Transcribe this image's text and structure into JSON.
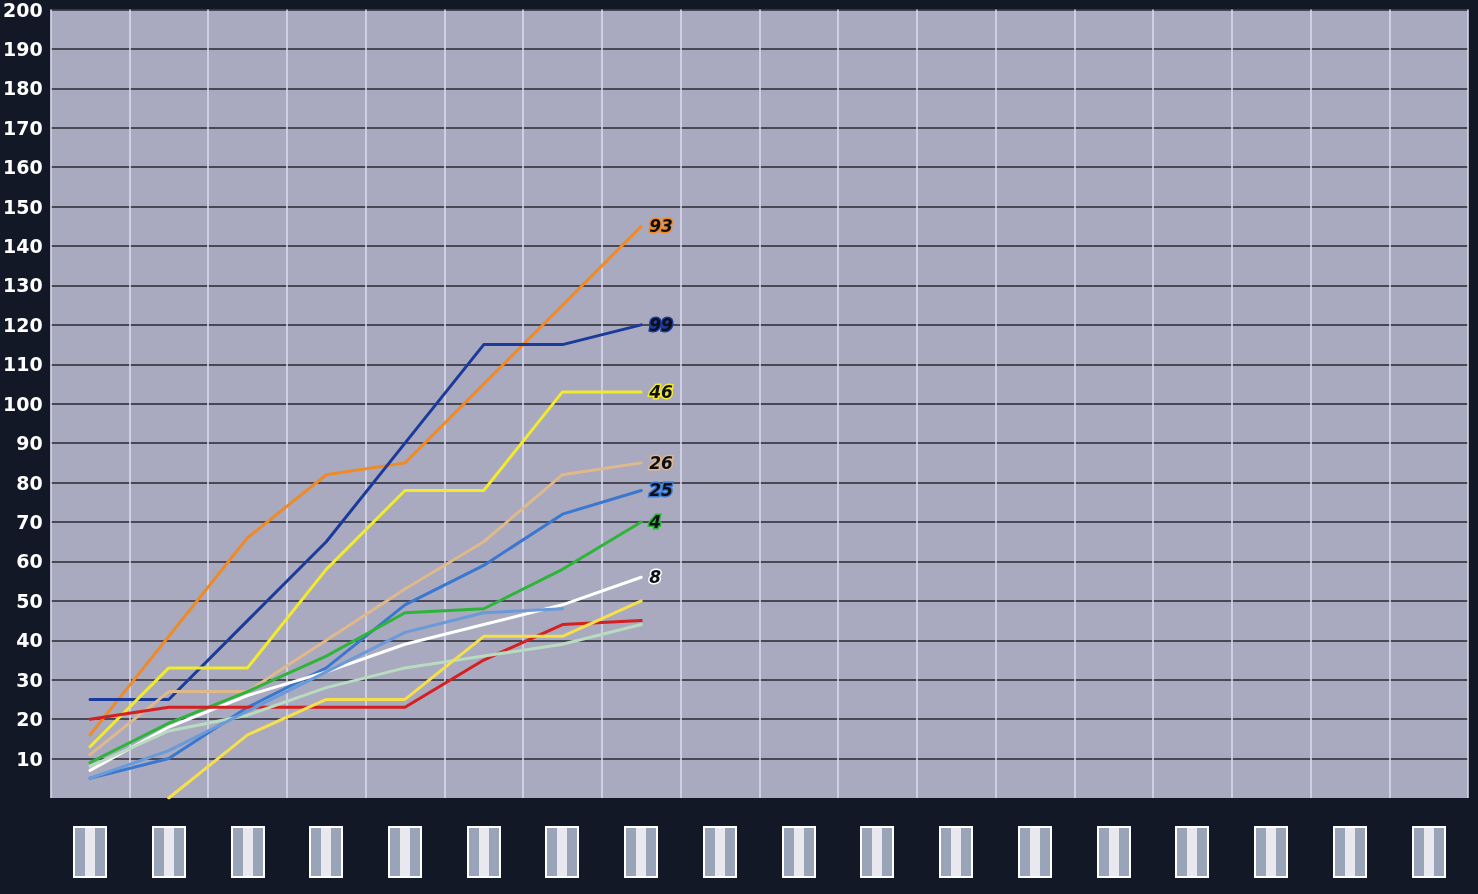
{
  "chart_data": {
    "type": "line",
    "categories": [
      null,
      null,
      null,
      null,
      null,
      null,
      null,
      null,
      null,
      null,
      null,
      null,
      null,
      null,
      null,
      null,
      null,
      null
    ],
    "ylim": [
      0,
      200
    ],
    "yticks": [
      10,
      20,
      30,
      40,
      50,
      60,
      70,
      80,
      90,
      100,
      110,
      120,
      130,
      140,
      150,
      160,
      170,
      180,
      190,
      200
    ],
    "grid": true,
    "legend": false,
    "marker": "none",
    "line_style": "solid",
    "series": [
      {
        "name": "93",
        "color": "#f08a24",
        "values": [
          16,
          41,
          66,
          82,
          85,
          105,
          125,
          145,
          null,
          null,
          null,
          null,
          null,
          null,
          null,
          null,
          null,
          null
        ]
      },
      {
        "name": "99",
        "color": "#1a3a9c",
        "values": [
          25,
          25,
          45,
          65,
          90,
          115,
          115,
          120,
          null,
          null,
          null,
          null,
          null,
          null,
          null,
          null,
          null,
          null
        ]
      },
      {
        "name": "46",
        "color": "#f2ea2a",
        "values": [
          13,
          33,
          33,
          58,
          78,
          78,
          103,
          103,
          null,
          null,
          null,
          null,
          null,
          null,
          null,
          null,
          null,
          null
        ]
      },
      {
        "name": "26",
        "color": "#e0b98a",
        "values": [
          11,
          27,
          27,
          40,
          53,
          65,
          82,
          85,
          null,
          null,
          null,
          null,
          null,
          null,
          null,
          null,
          null,
          null
        ]
      },
      {
        "name": "25",
        "color": "#3a78d0",
        "values": [
          5,
          10,
          23,
          33,
          49,
          59,
          72,
          78,
          null,
          null,
          null,
          null,
          null,
          null,
          null,
          null,
          null,
          null
        ]
      },
      {
        "name": "4",
        "color": "#2fb43a",
        "values": [
          9,
          19,
          27,
          36,
          47,
          48,
          58,
          70,
          null,
          null,
          null,
          null,
          null,
          null,
          null,
          null,
          null,
          null
        ]
      },
      {
        "name": "8",
        "color": "#ffffff",
        "values": [
          7,
          18,
          26,
          32,
          39,
          44,
          49,
          56,
          null,
          null,
          null,
          null,
          null,
          null,
          null,
          null,
          null,
          null
        ]
      },
      {
        "color": "#d42020",
        "values": [
          20,
          23,
          23,
          23,
          23,
          35,
          44,
          45,
          null,
          null,
          null,
          null,
          null,
          null,
          null,
          null,
          null,
          null
        ]
      },
      {
        "color": "#b8dcc0",
        "values": [
          8,
          17,
          21,
          28,
          33,
          36,
          39,
          44,
          null,
          null,
          null,
          null,
          null,
          null,
          null,
          null,
          null,
          null
        ]
      },
      {
        "color": "#6a9ad8",
        "values": [
          5,
          12,
          22,
          32,
          42,
          47,
          48,
          null,
          null,
          null,
          null,
          null,
          null,
          null,
          null,
          null,
          null,
          null
        ]
      },
      {
        "color": "#f5e04a",
        "values": [
          null,
          0,
          16,
          25,
          25,
          41,
          41,
          50,
          null,
          null,
          null,
          null,
          null,
          null,
          null,
          null,
          null,
          null
        ]
      }
    ]
  }
}
